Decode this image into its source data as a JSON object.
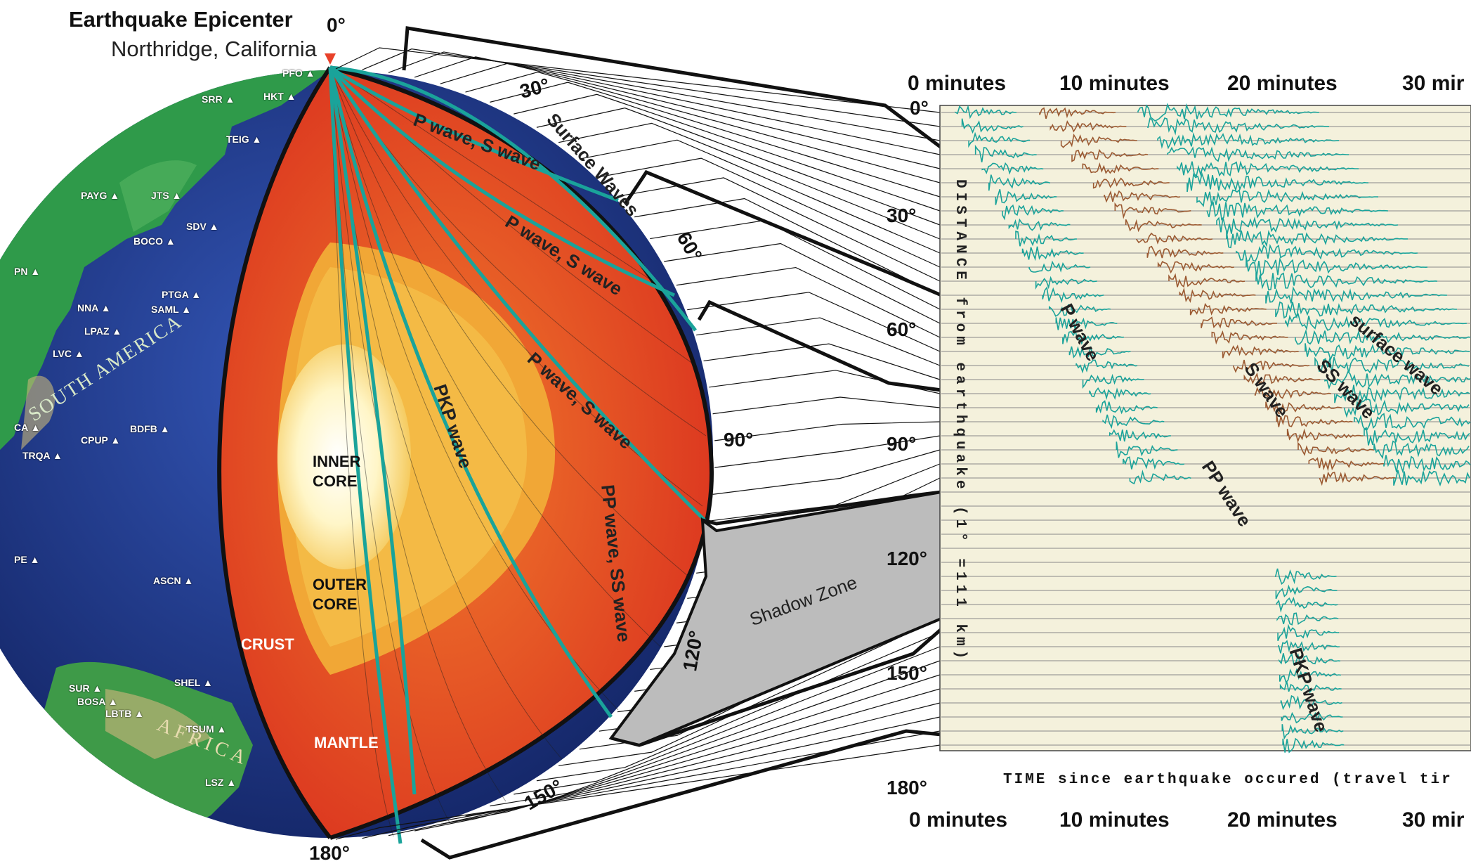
{
  "epicenter": {
    "title": "Earthquake Epicenter",
    "subtitle": "Northridge, California"
  },
  "globe_angles": {
    "a0": "0°",
    "a30": "30°",
    "a60": "60°",
    "a90": "90°",
    "a120": "120°",
    "a150": "150°",
    "a180": "180°"
  },
  "layers": {
    "inner_core": "INNER\nCORE",
    "outer_core": "OUTER\nCORE",
    "crust": "CRUST",
    "mantle": "MANTLE"
  },
  "continents": {
    "south_america": "SOUTH AMERICA",
    "africa": "AFRICA"
  },
  "stations": [
    "PFO",
    "SRR",
    "HKT",
    "TEIG",
    "PAYG",
    "JTS",
    "SDV",
    "BOCO",
    "PTGA",
    "SAML",
    "NNA",
    "LPAZ",
    "LVC",
    "CPUP",
    "BDFB",
    "TRQA",
    "ASCN",
    "SHEL",
    "SUR",
    "BOSA",
    "LBTB",
    "TSUM",
    "LSZ",
    "PN",
    "PE",
    "CA"
  ],
  "wave_paths": {
    "surface": "Surface Waves",
    "ps1": "P wave, S wave",
    "ps2": "P wave, S wave",
    "ps3": "P wave, S wave",
    "pkp": "PKP wave",
    "ppss": "PP wave, SS wave",
    "shadow": "Shadow Zone"
  },
  "seismogram": {
    "time_headers_top": [
      "0 minutes",
      "10 minutes",
      "20 minutes",
      "30 mir"
    ],
    "time_headers_bottom": [
      "0 minutes",
      "10 minutes",
      "20 minutes",
      "30 mir"
    ],
    "distance_ticks": [
      "0°",
      "30°",
      "60°",
      "90°",
      "120°",
      "150°",
      "180°"
    ],
    "distance_label": "DISTANCE from earthquake (1° =111 km)",
    "time_label": "TIME since earthquake occured (travel tir",
    "phase_labels": {
      "p": "P wave",
      "s": "S wave",
      "ss": "SS wave",
      "surface": "surface wave",
      "pp": "PP wave",
      "pkp": "PKP wave"
    }
  },
  "colors": {
    "ocean": "#1e3a8c",
    "land": "#2f9a4a",
    "mantle": "#e8412a",
    "outer_core": "#f0b23a",
    "inner_core": "#fffbe8",
    "ray": "#1aa39a",
    "paper": "#f4f1dc",
    "shadow": "#bcbcbc",
    "brown_trace": "#9b5a32"
  }
}
